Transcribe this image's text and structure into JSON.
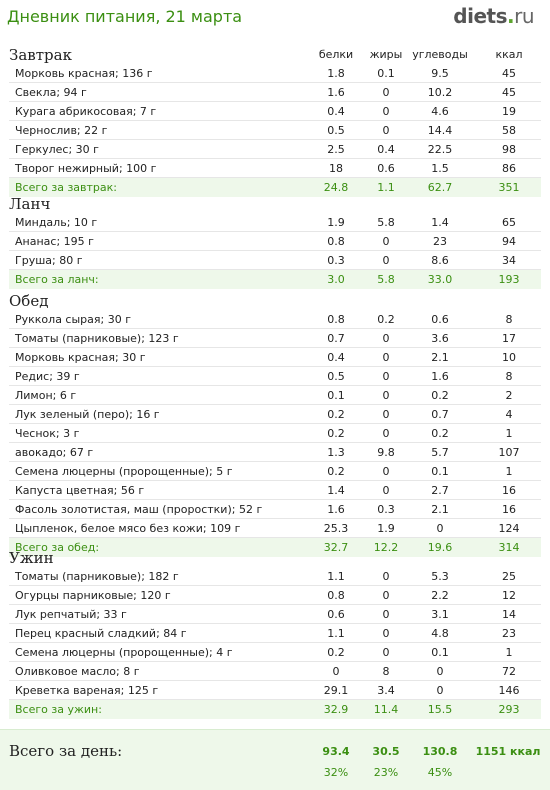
{
  "header": {
    "title": "Дневник питания, 21 марта",
    "logo_main": "diets",
    "logo_dot": ".",
    "logo_tld": "ru"
  },
  "columns": {
    "protein": "белки",
    "fat": "жиры",
    "carbs": "углеводы",
    "kcal": "ккал"
  },
  "meals": [
    {
      "title": "Завтрак",
      "items": [
        {
          "name": "Морковь красная; 136 г",
          "protein": "1.8",
          "fat": "0.1",
          "carbs": "9.5",
          "kcal": "45"
        },
        {
          "name": "Свекла; 94 г",
          "protein": "1.6",
          "fat": "0",
          "carbs": "10.2",
          "kcal": "45"
        },
        {
          "name": "Курага абрикосовая; 7 г",
          "protein": "0.4",
          "fat": "0",
          "carbs": "4.6",
          "kcal": "19"
        },
        {
          "name": "Чернослив; 22 г",
          "protein": "0.5",
          "fat": "0",
          "carbs": "14.4",
          "kcal": "58"
        },
        {
          "name": "Геркулес; 30 г",
          "protein": "2.5",
          "fat": "0.4",
          "carbs": "22.5",
          "kcal": "98"
        },
        {
          "name": "Творог нежирный; 100 г",
          "protein": "18",
          "fat": "0.6",
          "carbs": "1.5",
          "kcal": "86"
        }
      ],
      "total": {
        "name": "Всего за завтрак:",
        "protein": "24.8",
        "fat": "1.1",
        "carbs": "62.7",
        "kcal": "351"
      }
    },
    {
      "title": "Ланч",
      "items": [
        {
          "name": "Миндаль; 10 г",
          "protein": "1.9",
          "fat": "5.8",
          "carbs": "1.4",
          "kcal": "65"
        },
        {
          "name": "Ананас; 195 г",
          "protein": "0.8",
          "fat": "0",
          "carbs": "23",
          "kcal": "94"
        },
        {
          "name": "Груша; 80 г",
          "protein": "0.3",
          "fat": "0",
          "carbs": "8.6",
          "kcal": "34"
        }
      ],
      "total": {
        "name": "Всего за ланч:",
        "protein": "3.0",
        "fat": "5.8",
        "carbs": "33.0",
        "kcal": "193"
      }
    },
    {
      "title": "Обед",
      "items": [
        {
          "name": "Руккола сырая; 30 г",
          "protein": "0.8",
          "fat": "0.2",
          "carbs": "0.6",
          "kcal": "8"
        },
        {
          "name": "Томаты (парниковые); 123 г",
          "protein": "0.7",
          "fat": "0",
          "carbs": "3.6",
          "kcal": "17"
        },
        {
          "name": "Морковь красная; 30 г",
          "protein": "0.4",
          "fat": "0",
          "carbs": "2.1",
          "kcal": "10"
        },
        {
          "name": "Редис; 39 г",
          "protein": "0.5",
          "fat": "0",
          "carbs": "1.6",
          "kcal": "8"
        },
        {
          "name": "Лимон; 6 г",
          "protein": "0.1",
          "fat": "0",
          "carbs": "0.2",
          "kcal": "2"
        },
        {
          "name": "Лук зеленый (перо); 16 г",
          "protein": "0.2",
          "fat": "0",
          "carbs": "0.7",
          "kcal": "4"
        },
        {
          "name": "Чеснок; 3 г",
          "protein": "0.2",
          "fat": "0",
          "carbs": "0.2",
          "kcal": "1"
        },
        {
          "name": "авокадо; 67 г",
          "protein": "1.3",
          "fat": "9.8",
          "carbs": "5.7",
          "kcal": "107"
        },
        {
          "name": "Семена люцерны (пророщенные); 5 г",
          "protein": "0.2",
          "fat": "0",
          "carbs": "0.1",
          "kcal": "1"
        },
        {
          "name": "Капуста цветная; 56 г",
          "protein": "1.4",
          "fat": "0",
          "carbs": "2.7",
          "kcal": "16"
        },
        {
          "name": "Фасоль золотистая, маш (проростки); 52 г",
          "protein": "1.6",
          "fat": "0.3",
          "carbs": "2.1",
          "kcal": "16"
        },
        {
          "name": "Цыпленок, белое мясо без кожи; 109 г",
          "protein": "25.3",
          "fat": "1.9",
          "carbs": "0",
          "kcal": "124"
        }
      ],
      "total": {
        "name": "Всего за обед:",
        "protein": "32.7",
        "fat": "12.2",
        "carbs": "19.6",
        "kcal": "314"
      }
    },
    {
      "title": "Ужин",
      "items": [
        {
          "name": "Томаты (парниковые); 182 г",
          "protein": "1.1",
          "fat": "0",
          "carbs": "5.3",
          "kcal": "25"
        },
        {
          "name": "Огурцы парниковые; 120 г",
          "protein": "0.8",
          "fat": "0",
          "carbs": "2.2",
          "kcal": "12"
        },
        {
          "name": "Лук репчатый; 33 г",
          "protein": "0.6",
          "fat": "0",
          "carbs": "3.1",
          "kcal": "14"
        },
        {
          "name": "Перец красный сладкий; 84 г",
          "protein": "1.1",
          "fat": "0",
          "carbs": "4.8",
          "kcal": "23"
        },
        {
          "name": "Семена люцерны (пророщенные); 4 г",
          "protein": "0.2",
          "fat": "0",
          "carbs": "0.1",
          "kcal": "1"
        },
        {
          "name": "Оливковое масло; 8 г",
          "protein": "0",
          "fat": "8",
          "carbs": "0",
          "kcal": "72"
        },
        {
          "name": "Креветка вареная; 125 г",
          "protein": "29.1",
          "fat": "3.4",
          "carbs": "0",
          "kcal": "146"
        }
      ],
      "total": {
        "name": "Всего за ужин:",
        "protein": "32.9",
        "fat": "11.4",
        "carbs": "15.5",
        "kcal": "293"
      }
    }
  ],
  "day_total": {
    "label": "Всего за день:",
    "protein": "93.4",
    "fat": "30.5",
    "carbs": "130.8",
    "kcal": "1151 ккал",
    "protein_pct": "32%",
    "fat_pct": "23%",
    "carbs_pct": "45%"
  }
}
